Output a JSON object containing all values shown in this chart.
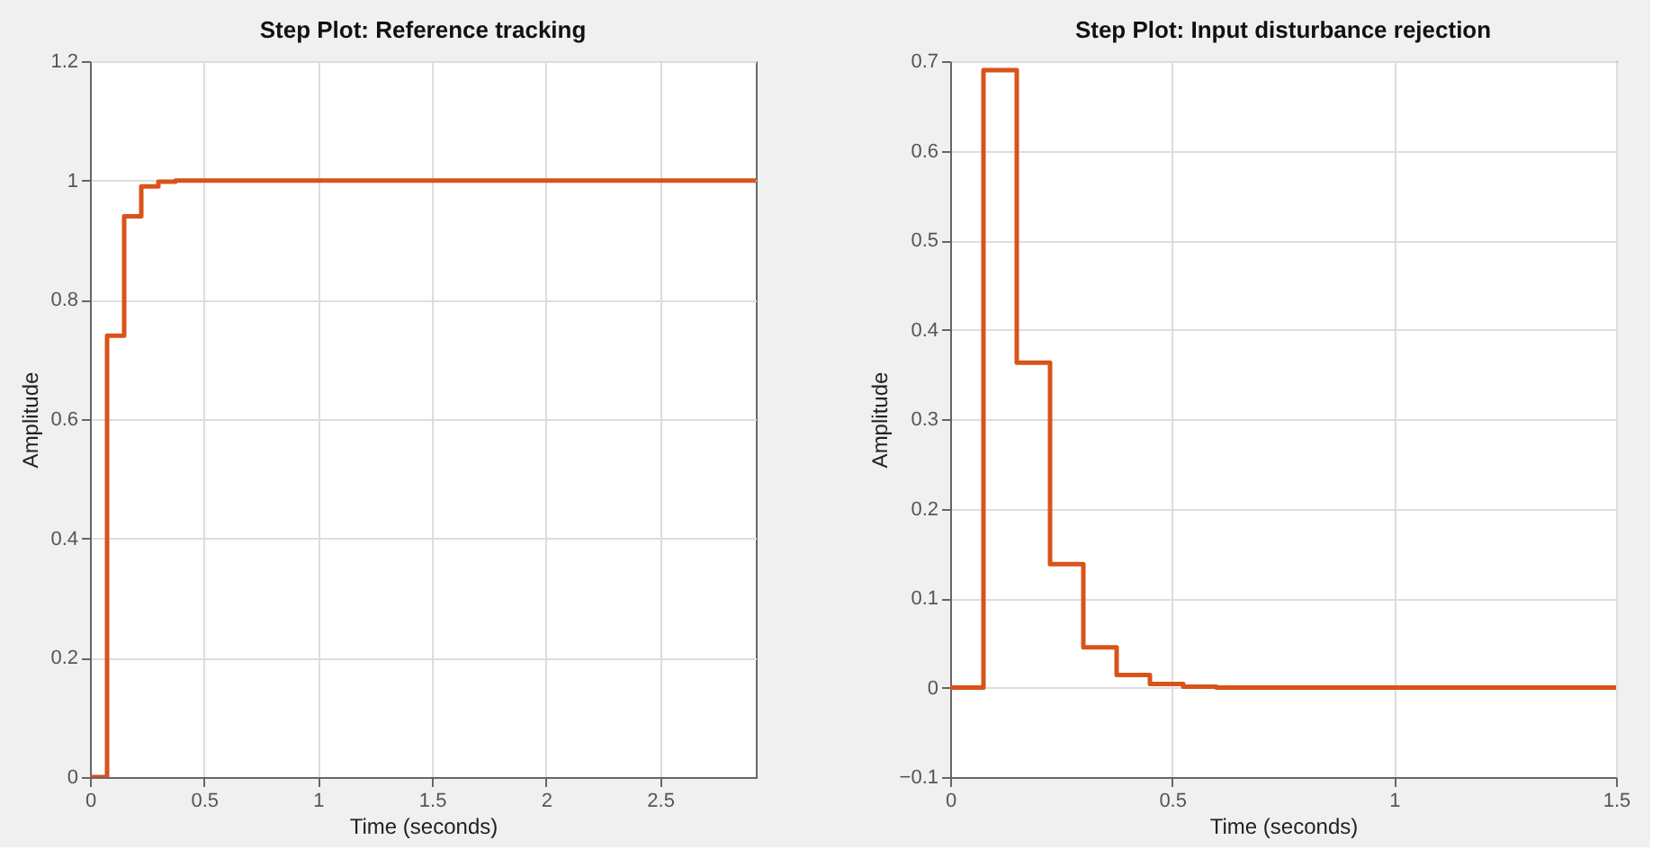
{
  "chart_data": [
    {
      "type": "step",
      "title": "Step Plot: Reference tracking",
      "xlabel": "Time (seconds)",
      "ylabel": "Amplitude",
      "x": [
        0,
        0.075,
        0.15,
        0.225,
        0.3,
        0.375,
        2.92
      ],
      "series": [
        {
          "color": "#d95319",
          "values": [
            0,
            0.74,
            0.94,
            0.99,
            0.998,
            1.0,
            1.0
          ]
        }
      ],
      "xlim": [
        0,
        2.92
      ],
      "xticks": [
        0,
        0.5,
        1,
        1.5,
        2,
        2.5
      ],
      "ylim": [
        0,
        1.2
      ],
      "yticks": [
        0,
        0.2,
        0.4,
        0.6,
        0.8,
        1,
        1.2
      ],
      "grid": true,
      "line_style": "solid"
    },
    {
      "type": "step",
      "title": "Step Plot: Input disturbance rejection",
      "xlabel": "Time (seconds)",
      "ylabel": "Amplitude",
      "x": [
        0,
        0.075,
        0.15,
        0.225,
        0.3,
        0.375,
        0.45,
        0.525,
        0.6,
        1.5
      ],
      "series": [
        {
          "color": "#d95319",
          "values": [
            0,
            0.69,
            0.363,
            0.138,
            0.045,
            0.014,
            0.004,
            0.001,
            0,
            0
          ]
        }
      ],
      "xlim": [
        0,
        1.5
      ],
      "xticks": [
        0,
        0.5,
        1,
        1.5
      ],
      "ylim": [
        -0.1,
        0.7
      ],
      "yticks": [
        -0.1,
        0,
        0.1,
        0.2,
        0.3,
        0.4,
        0.5,
        0.6,
        0.7
      ],
      "grid": true,
      "line_style": "solid"
    }
  ]
}
